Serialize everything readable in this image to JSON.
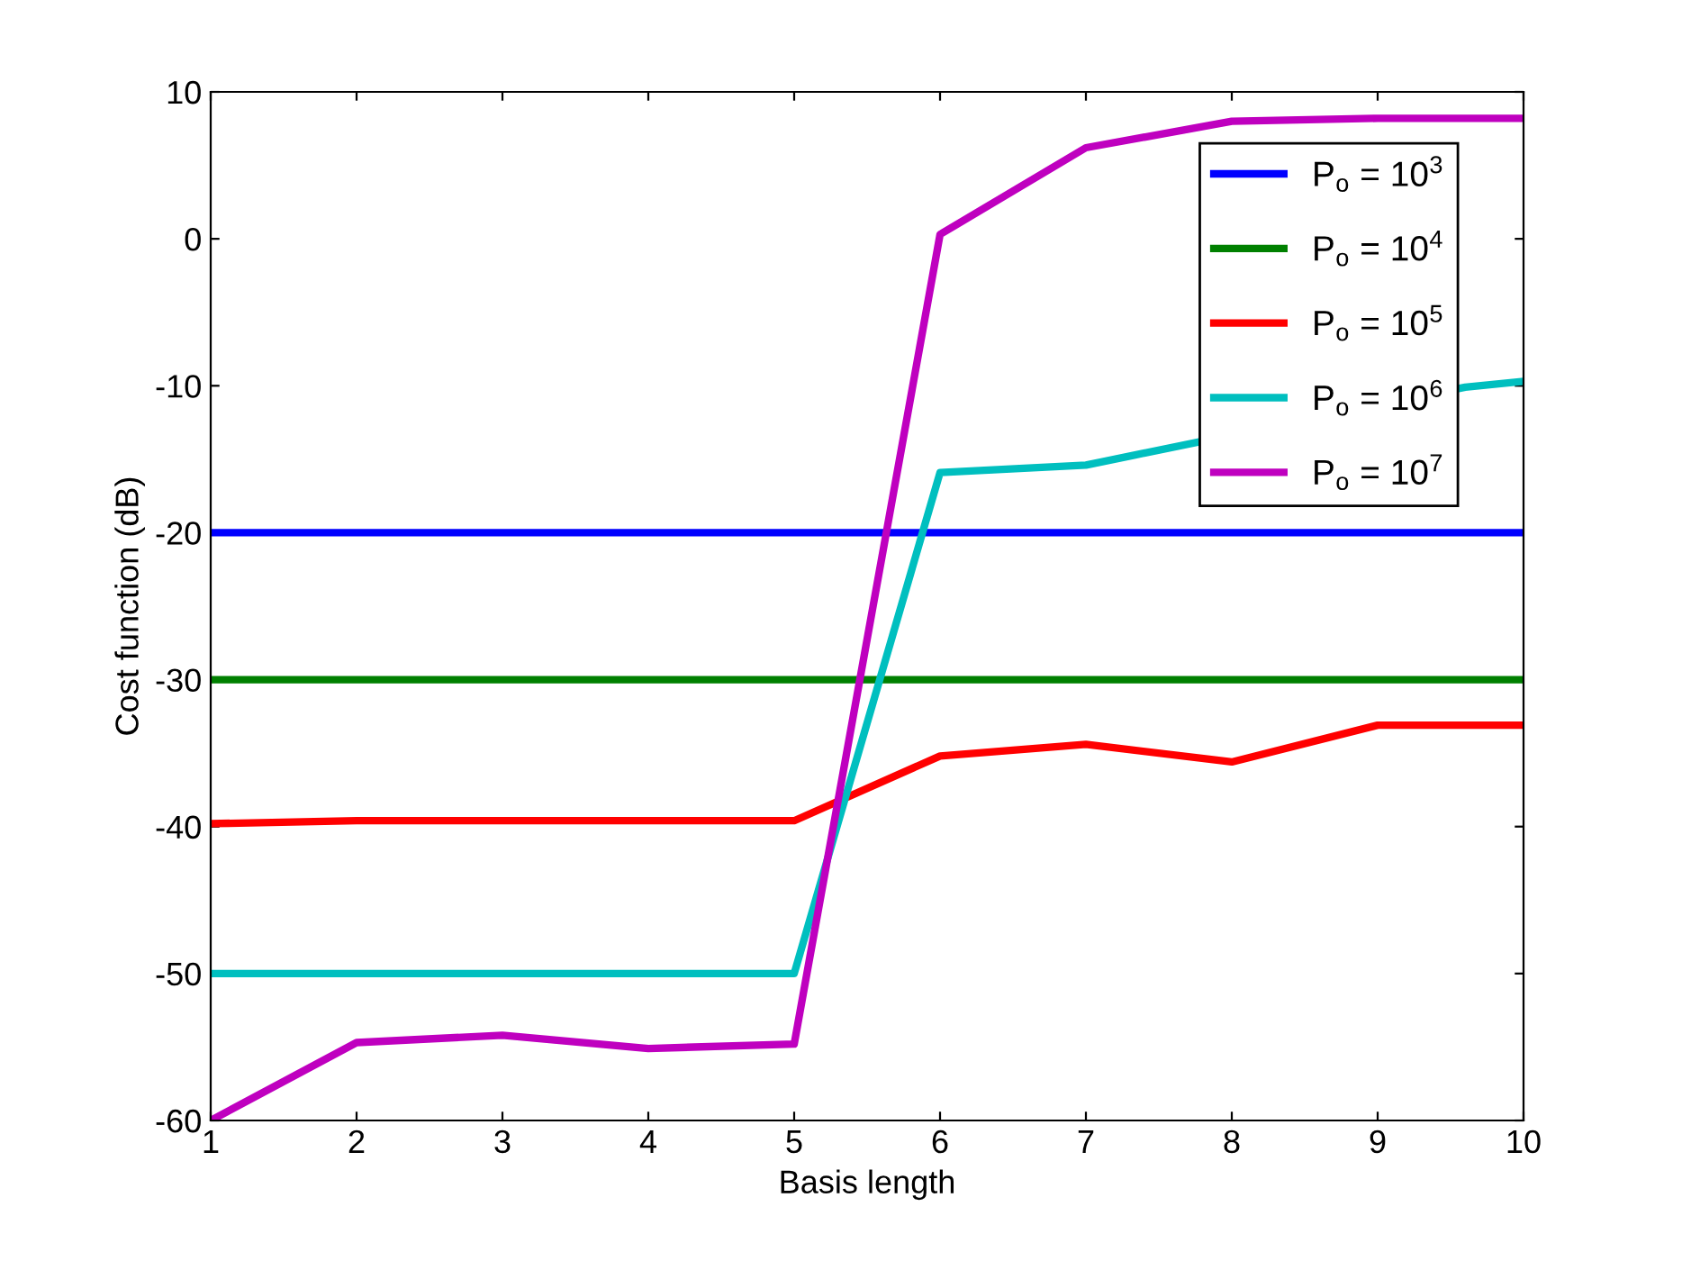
{
  "chart_data": {
    "type": "line",
    "xlabel": "Basis length",
    "ylabel": "Cost function (dB)",
    "x": [
      1,
      2,
      3,
      4,
      5,
      6,
      7,
      8,
      9,
      10
    ],
    "xlim": [
      1,
      10
    ],
    "xticks": [
      1,
      2,
      3,
      4,
      5,
      6,
      7,
      8,
      9,
      10
    ],
    "ylim": [
      -60,
      10
    ],
    "yticks": [
      -60,
      -50,
      -40,
      -30,
      -20,
      -10,
      0,
      10
    ],
    "grid": false,
    "legend": "top right",
    "marker": "none",
    "line_style": "solid",
    "series": [
      {
        "name": "P$_{o}$ = 10$^{3}$",
        "color": "#0000ff",
        "values": [
          -20,
          -20,
          -20,
          -20,
          -20,
          -20,
          -20,
          -20,
          -20,
          -20
        ]
      },
      {
        "name": "P$_{o}$ = 10$^{4}$",
        "color": "#008000",
        "values": [
          -30,
          -30,
          -30,
          -30,
          -30,
          -30,
          -30,
          -30,
          -30,
          -30
        ]
      },
      {
        "name": "P$_{o}$ = 10$^{5}$",
        "color": "#ff0000",
        "values": [
          -39.8,
          -39.6,
          -39.6,
          -39.6,
          -39.6,
          -35.2,
          -34.4,
          -35.6,
          -33.1,
          -33.1
        ]
      },
      {
        "name": "P$_{o}$ = 10$^{6}$",
        "color": "#00bfbf",
        "x": [
          1,
          2,
          3,
          4,
          5,
          6,
          7,
          9.6,
          10
        ],
        "values": [
          -50,
          -50,
          -50,
          -50,
          -50,
          -15.9,
          -15.4,
          -10.1,
          -9.7
        ]
      },
      {
        "name": "P$_{o}$ = 10$^{7}$",
        "color": "#bf00bf",
        "values": [
          -60,
          -54.7,
          -54.2,
          -55.1,
          -54.8,
          0.3,
          6.2,
          8.0,
          8.2,
          8.2
        ]
      }
    ]
  }
}
